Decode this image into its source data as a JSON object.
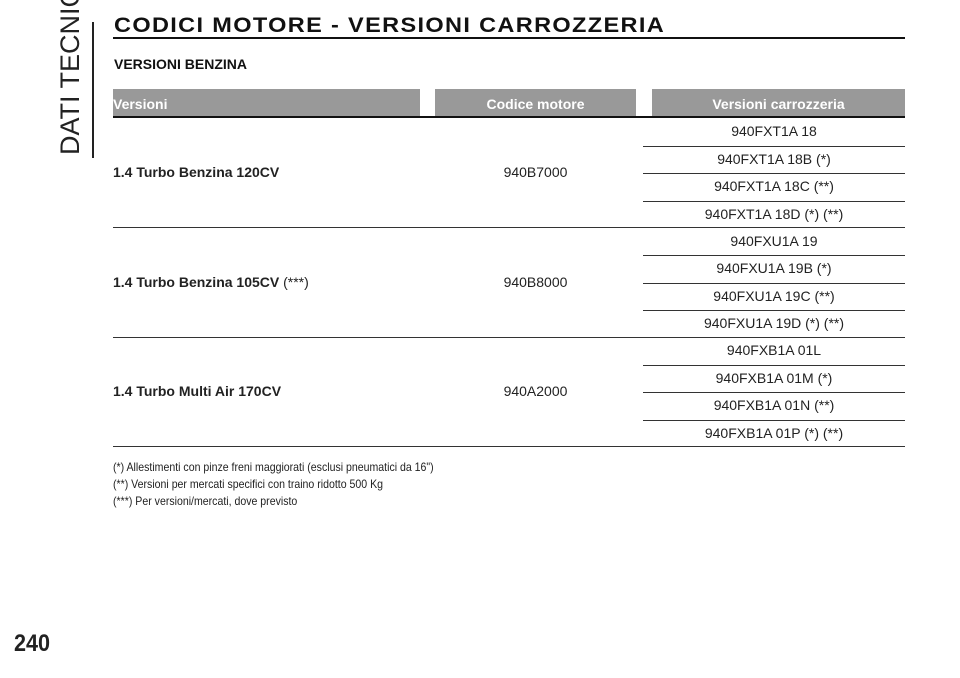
{
  "section": "DATI TECNICI",
  "title": "CODICI MOTORE - VERSIONI CARROZZERIA",
  "subtitle": "VERSIONI BENZINA",
  "table": {
    "headers": [
      "Versioni",
      "Codice motore",
      "Versioni carrozzeria"
    ],
    "rows": [
      {
        "name": "1.4 Turbo Benzina 120CV",
        "note": "",
        "code": "940B7000",
        "versions": [
          "940FXT1A 18",
          "940FXT1A 18B (*)",
          "940FXT1A 18C (**)",
          "940FXT1A 18D (*) (**)"
        ]
      },
      {
        "name": "1.4 Turbo Benzina 105CV",
        "note": "(***)",
        "code": "940B8000",
        "versions": [
          "940FXU1A 19",
          "940FXU1A 19B (*)",
          "940FXU1A 19C (**)",
          "940FXU1A 19D (*) (**)"
        ]
      },
      {
        "name": "1.4 Turbo Multi Air 170CV",
        "note": "",
        "code": "940A2000",
        "versions": [
          "940FXB1A 01L",
          "940FXB1A 01M (*)",
          "940FXB1A 01N (**)",
          "940FXB1A 01P (*) (**)"
        ]
      }
    ]
  },
  "footnotes": [
    "(*) Allestimenti con pinze freni maggiorati (esclusi pneumatici da 16\")",
    "(**) Versioni per mercati specifici con traino ridotto 500 Kg",
    "(***) Per versioni/mercati, dove previsto"
  ],
  "page_number": "240"
}
